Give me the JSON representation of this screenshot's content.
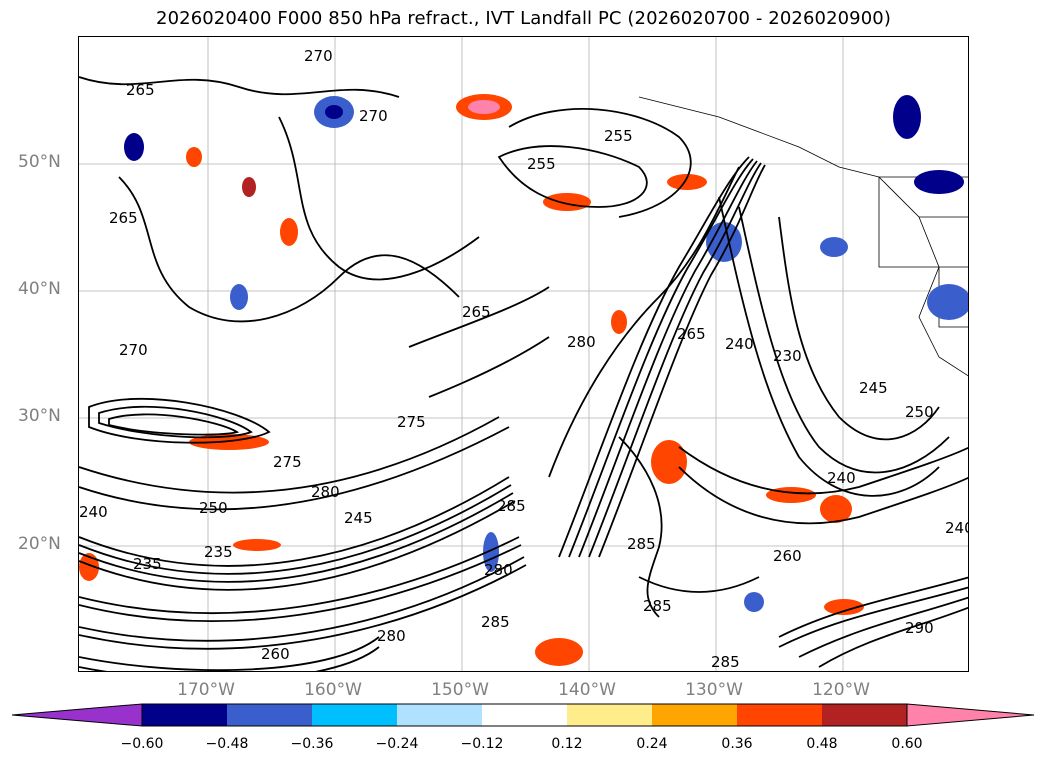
{
  "title": "2026020400 F000 850 hPa refract., IVT Landfall PC (2026020700 - 2026020900)",
  "lat_labels": [
    "50°N",
    "40°N",
    "30°N",
    "20°N"
  ],
  "lon_labels": [
    "170°W",
    "160°W",
    "150°W",
    "140°W",
    "130°W",
    "120°W"
  ],
  "contour_labels": [
    "265",
    "270",
    "265",
    "270",
    "255",
    "255",
    "265",
    "265",
    "270",
    "275",
    "280",
    "275",
    "250",
    "245",
    "240",
    "235",
    "280",
    "285",
    "285",
    "240",
    "230",
    "245",
    "250",
    "240",
    "260",
    "285",
    "280",
    "285",
    "260",
    "290",
    "285",
    "280",
    "240",
    "235"
  ],
  "colorbar": {
    "colors": [
      "#9932cc",
      "#00008b",
      "#3a5fcd",
      "#00bfff",
      "#b0e2ff",
      "#ffffff",
      "#ffec8b",
      "#ffa500",
      "#ff4500",
      "#b22222",
      "#ff82ab"
    ],
    "ticks": [
      "−0.60",
      "−0.48",
      "−0.36",
      "−0.24",
      "−0.12",
      "0.12",
      "0.24",
      "0.36",
      "0.48",
      "0.60"
    ]
  },
  "colors": {
    "contour": "#000000",
    "grid": "#808080",
    "negative_dark": "#00008b",
    "negative_mid": "#3a5fcd",
    "negative_light": "#00bfff",
    "positive_light": "#ffa500",
    "positive_mid": "#ff4500",
    "positive_dark": "#b22222"
  }
}
